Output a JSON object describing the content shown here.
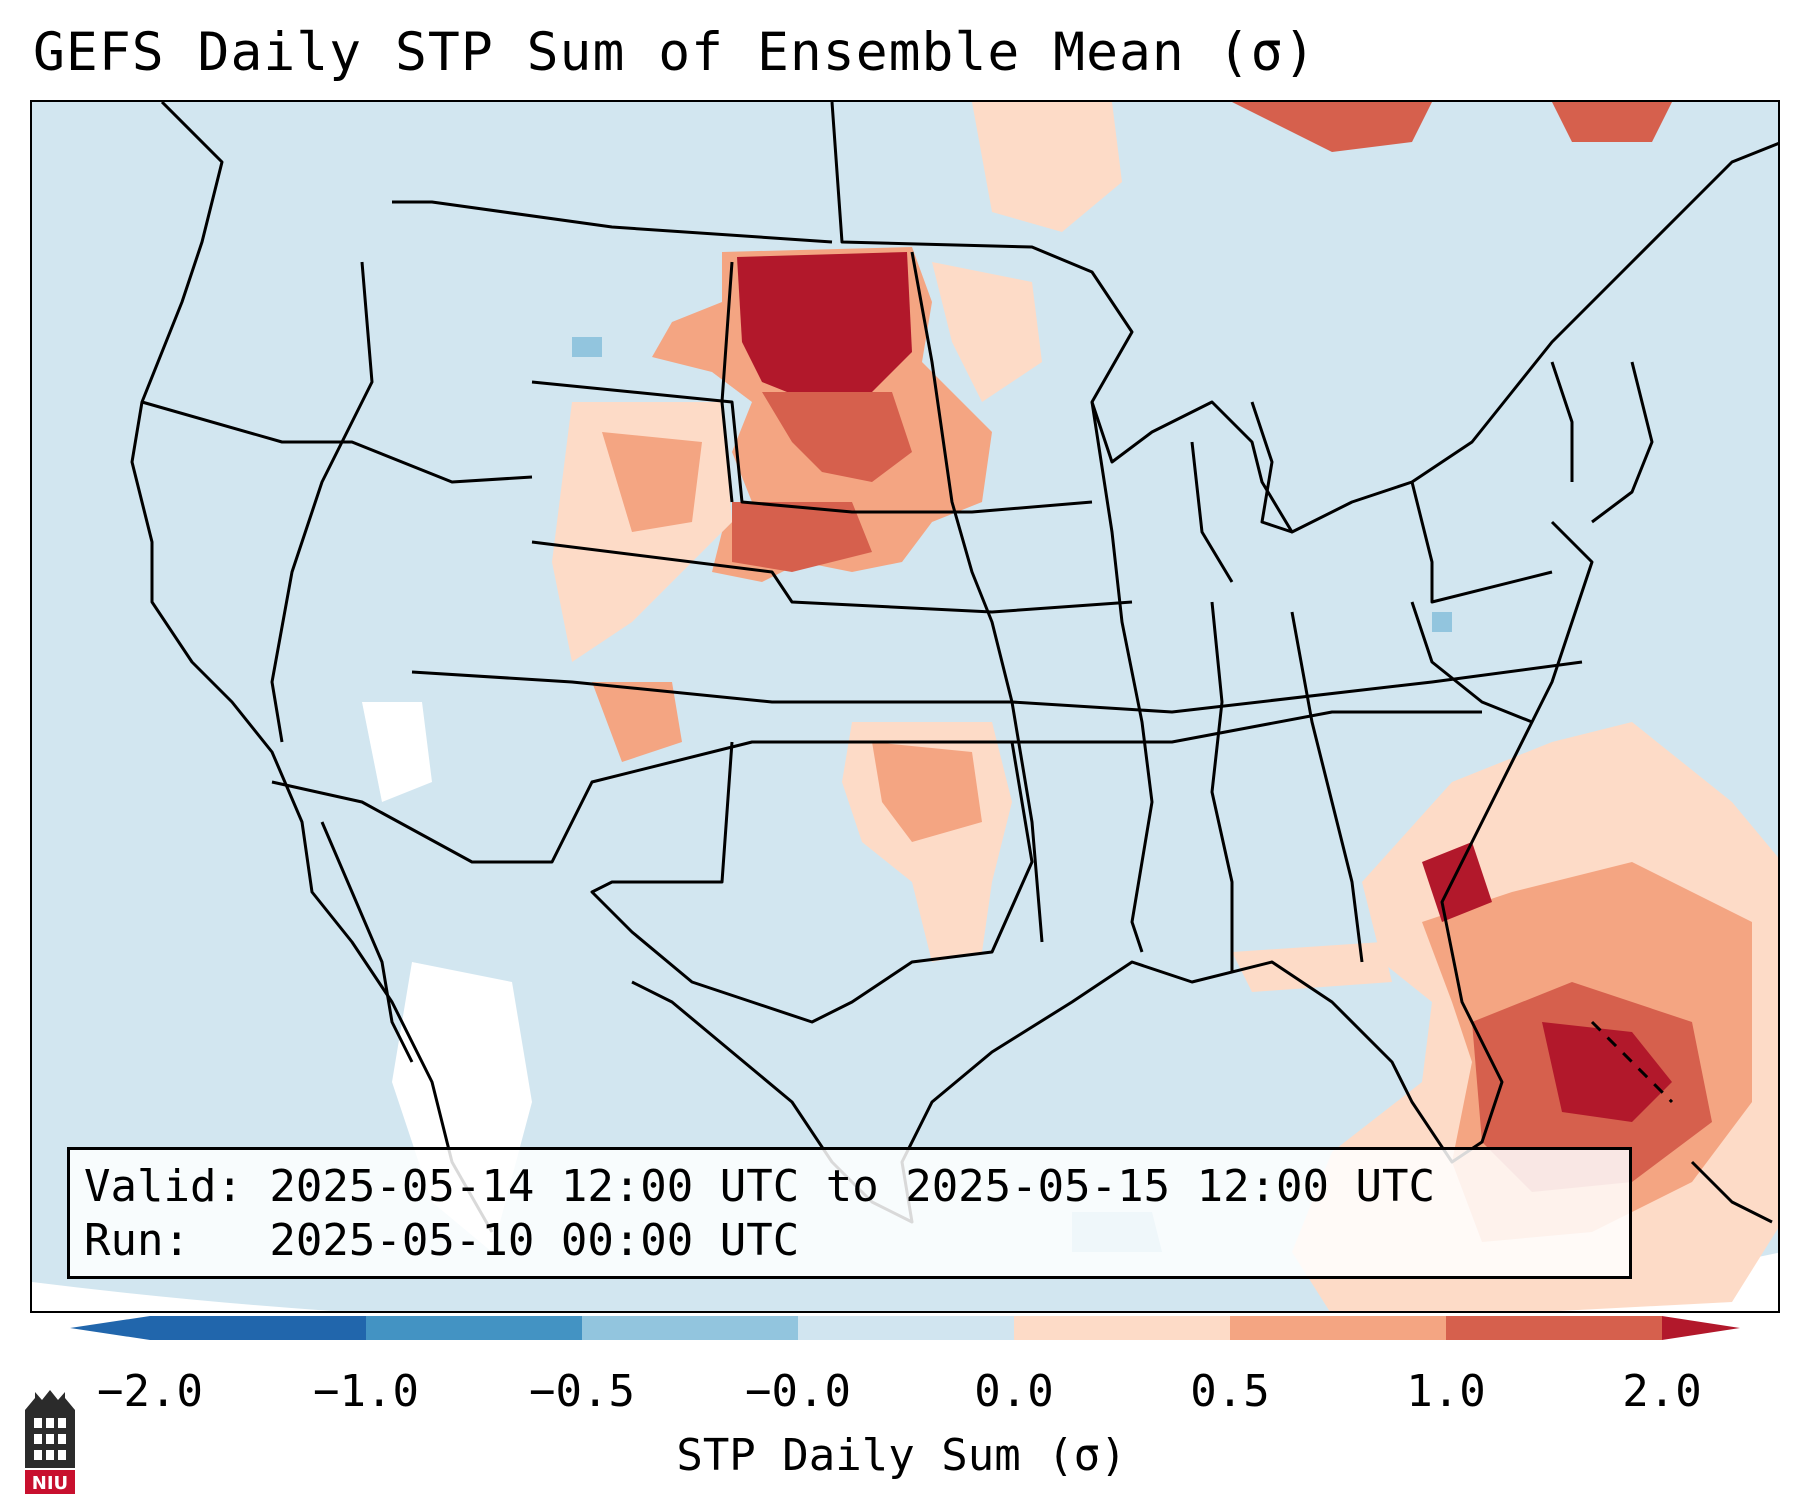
{
  "title": "GEFS Daily STP Sum of Ensemble Mean (σ)",
  "info": {
    "valid_line": "Valid: 2025-05-14 12:00 UTC to 2025-05-15 12:00 UTC",
    "run_line": "Run:   2025-05-10 00:00 UTC"
  },
  "colorbar": {
    "label": "STP Daily Sum (σ)",
    "ticks": [
      "−2.0",
      "−1.0",
      "−0.5",
      "−0.0",
      "0.0",
      "0.5",
      "1.0",
      "2.0"
    ],
    "segment_colors": [
      "#2166ac",
      "#4393c3",
      "#92c5de",
      "#d1e5f0",
      "#fddbc7",
      "#f4a582",
      "#d6604d",
      "#b2182b"
    ],
    "under_color": "#2166ac",
    "over_color": "#b2182b"
  },
  "map": {
    "background_color": "#d2e6f0",
    "neutral_color": "#ffffff",
    "region": "CONUS"
  },
  "logo": {
    "text": "NIU",
    "color": "#c8102e"
  }
}
